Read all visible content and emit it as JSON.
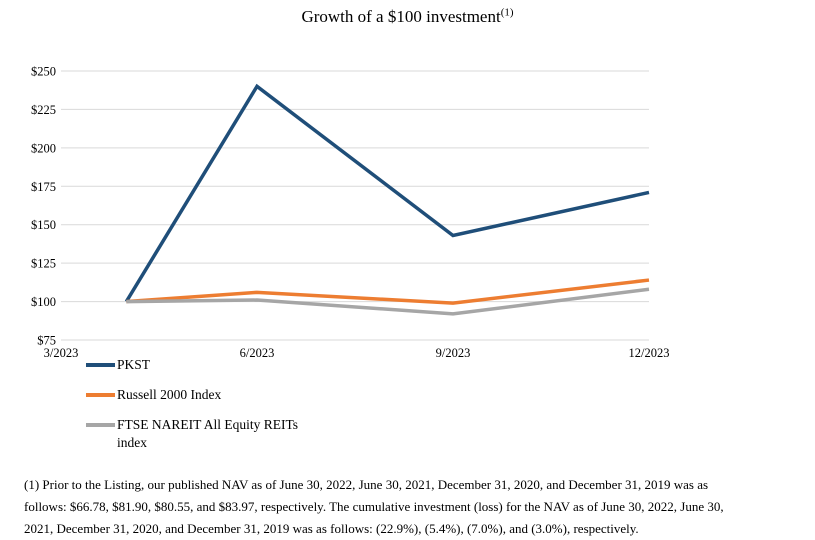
{
  "chart_data": {
    "type": "line",
    "title": "Growth of a $100 investment",
    "title_superscript": "(1)",
    "x_axis": {
      "tick_labels": [
        "3/2023",
        "6/2023",
        "9/2023",
        "12/2023"
      ],
      "tick_months": [
        3,
        6,
        9,
        12
      ],
      "range_months": [
        3,
        12
      ]
    },
    "y_axis": {
      "tick_labels": [
        "$75",
        "$100",
        "$125",
        "$150",
        "$175",
        "$200",
        "$225",
        "$250"
      ],
      "tick_values": [
        75,
        100,
        125,
        150,
        175,
        200,
        225,
        250
      ],
      "range": [
        75,
        250
      ]
    },
    "x_months": [
      4,
      6,
      9,
      12
    ],
    "series": [
      {
        "name": "PKST",
        "color": "#1F4E79",
        "values": [
          100,
          240,
          143,
          171
        ]
      },
      {
        "name": "Russell 2000 Index",
        "color": "#ED7D31",
        "values": [
          100,
          106,
          99,
          114
        ]
      },
      {
        "name": "FTSE NAREIT All Equity REITs index",
        "color": "#A6A6A6",
        "values": [
          100,
          101,
          92,
          108
        ]
      }
    ],
    "gridline_color": "#D9D9D9",
    "grid": "horizontal-only",
    "legend_position": "bottom-left"
  },
  "footnote": {
    "lines": [
      "(1) Prior to the Listing, our published NAV as of June 30, 2022, June 30, 2021, December 31, 2020, and December 31, 2019 was as",
      "follows: $66.78, $81.90, $80.55, and $83.97, respectively. The cumulative investment (loss) for the NAV as of June 30, 2022, June 30,",
      "2021, December 31, 2020, and December 31, 2019 was as follows: (22.9%), (5.4%), (7.0%), and (3.0%), respectively."
    ]
  }
}
